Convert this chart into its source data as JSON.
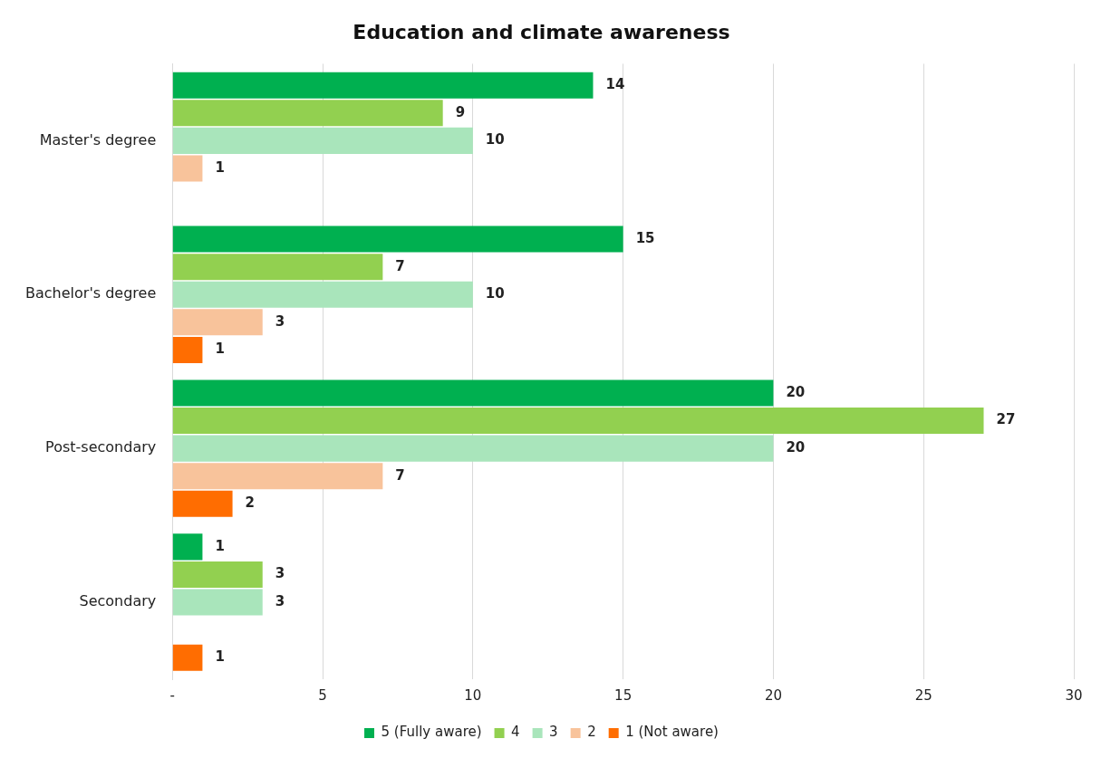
{
  "chart_data": {
    "type": "bar",
    "orientation": "horizontal",
    "title": "Education and climate awareness",
    "categories": [
      "Master's degree",
      "Bachelor's degree",
      "Post-secondary",
      "Secondary"
    ],
    "series": [
      {
        "name": "5 (Fully aware)",
        "color": "#00b050",
        "values": [
          14,
          15,
          20,
          1
        ]
      },
      {
        "name": "4",
        "color": "#92d050",
        "values": [
          9,
          7,
          27,
          3
        ]
      },
      {
        "name": "3",
        "color": "#a9e5bb",
        "values": [
          10,
          10,
          20,
          3
        ]
      },
      {
        "name": "2",
        "color": "#f8c39b",
        "values": [
          1,
          3,
          7,
          null
        ]
      },
      {
        "name": "1 (Not aware)",
        "color": "#ff6d01",
        "values": [
          null,
          1,
          2,
          1
        ]
      }
    ],
    "xlim": [
      0,
      30
    ],
    "xticks": [
      {
        "value": 0,
        "label": "-"
      },
      5,
      10,
      15,
      20,
      25,
      30
    ],
    "grid": "x",
    "legend": "bottom",
    "data_labels": true
  }
}
